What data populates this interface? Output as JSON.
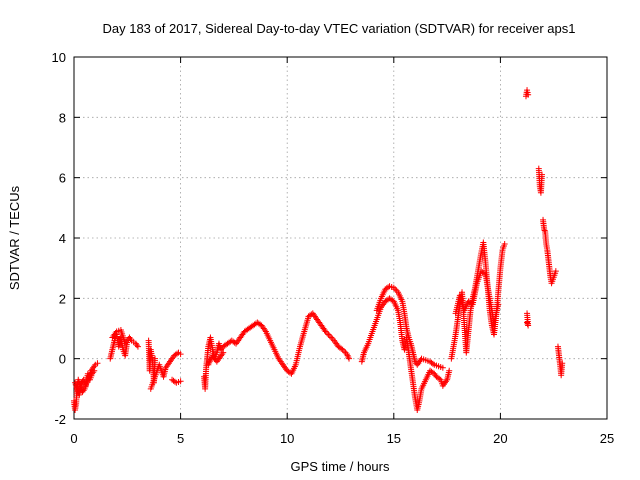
{
  "chart_data": {
    "type": "scatter",
    "title": "Day 183 of 2017, Sidereal Day-to-day VTEC variation (SDTVAR) for receiver aps1",
    "xlabel": "GPS time / hours",
    "ylabel": "SDTVAR / TECUs",
    "xlim": [
      0,
      25
    ],
    "ylim": [
      -2,
      10
    ],
    "xticks": [
      0,
      5,
      10,
      15,
      20,
      25
    ],
    "yticks": [
      -2,
      0,
      2,
      4,
      6,
      8,
      10
    ],
    "grid": true,
    "marker": "+",
    "color": "#ff0000",
    "series": [
      {
        "name": "SDTVAR",
        "segments": [
          [
            [
              0.0,
              -1.4
            ],
            [
              0.05,
              -1.7
            ],
            [
              0.1,
              -1.5
            ],
            [
              0.15,
              -0.9
            ],
            [
              0.2,
              -0.7
            ],
            [
              0.3,
              -0.9
            ],
            [
              0.4,
              -1.1
            ],
            [
              0.5,
              -1.0
            ],
            [
              0.6,
              -0.8
            ],
            [
              0.7,
              -0.6
            ],
            [
              0.8,
              -0.4
            ],
            [
              0.9,
              -0.3
            ],
            [
              1.0,
              -0.2
            ],
            [
              1.1,
              -0.15
            ]
          ],
          [
            [
              0.05,
              -0.8
            ],
            [
              0.15,
              -1.0
            ],
            [
              0.25,
              -1.2
            ],
            [
              0.35,
              -0.8
            ],
            [
              0.45,
              -0.7
            ],
            [
              0.55,
              -0.9
            ],
            [
              0.65,
              -0.5
            ],
            [
              0.75,
              -0.7
            ],
            [
              0.85,
              -0.5
            ],
            [
              0.95,
              -0.4
            ]
          ],
          [
            [
              1.7,
              0.0
            ],
            [
              1.8,
              0.3
            ],
            [
              1.9,
              0.6
            ],
            [
              2.0,
              0.8
            ],
            [
              2.1,
              0.4
            ],
            [
              2.2,
              0.7
            ],
            [
              2.3,
              0.3
            ],
            [
              2.4,
              0.1
            ],
            [
              2.5,
              0.6
            ],
            [
              2.6,
              0.7
            ],
            [
              2.7,
              0.6
            ],
            [
              2.8,
              0.55
            ],
            [
              2.9,
              0.5
            ],
            [
              3.0,
              0.4
            ]
          ],
          [
            [
              1.8,
              0.7
            ],
            [
              2.0,
              0.9
            ],
            [
              2.2,
              0.95
            ],
            [
              2.4,
              0.5
            ]
          ],
          [
            [
              3.5,
              0.6
            ],
            [
              3.55,
              -0.4
            ],
            [
              3.6,
              0.3
            ],
            [
              3.65,
              0.1
            ],
            [
              3.7,
              -0.2
            ],
            [
              3.75,
              -0.8
            ],
            [
              3.8,
              0.0
            ]
          ],
          [
            [
              3.6,
              -1.0
            ],
            [
              3.8,
              -0.6
            ],
            [
              4.0,
              -0.2
            ],
            [
              4.2,
              -0.6
            ],
            [
              4.3,
              -0.3
            ],
            [
              4.5,
              -0.1
            ],
            [
              4.7,
              0.1
            ],
            [
              4.9,
              0.2
            ],
            [
              5.0,
              0.15
            ]
          ],
          [
            [
              4.6,
              -0.7
            ],
            [
              4.8,
              -0.8
            ],
            [
              5.0,
              -0.75
            ]
          ],
          [
            [
              6.1,
              -0.6
            ],
            [
              6.15,
              -1.0
            ],
            [
              6.2,
              -0.3
            ],
            [
              6.3,
              0.4
            ],
            [
              6.4,
              0.7
            ],
            [
              6.5,
              0.3
            ],
            [
              6.6,
              0.0
            ],
            [
              6.7,
              0.2
            ],
            [
              6.8,
              0.5
            ],
            [
              6.9,
              0.3
            ],
            [
              7.0,
              0.4
            ],
            [
              7.2,
              0.5
            ],
            [
              7.4,
              0.6
            ],
            [
              7.6,
              0.5
            ],
            [
              7.8,
              0.7
            ],
            [
              8.0,
              0.9
            ],
            [
              8.2,
              1.0
            ],
            [
              8.4,
              1.1
            ],
            [
              8.6,
              1.2
            ],
            [
              8.8,
              1.1
            ],
            [
              9.0,
              0.9
            ],
            [
              9.2,
              0.6
            ],
            [
              9.4,
              0.3
            ],
            [
              9.6,
              0.0
            ],
            [
              9.8,
              -0.2
            ],
            [
              10.0,
              -0.4
            ],
            [
              10.2,
              -0.5
            ],
            [
              10.4,
              -0.2
            ],
            [
              10.6,
              0.4
            ],
            [
              10.8,
              0.9
            ],
            [
              11.0,
              1.4
            ],
            [
              11.2,
              1.5
            ],
            [
              11.4,
              1.3
            ],
            [
              11.6,
              1.1
            ],
            [
              11.8,
              0.9
            ],
            [
              12.0,
              0.75
            ],
            [
              12.2,
              0.6
            ],
            [
              12.4,
              0.4
            ],
            [
              12.6,
              0.3
            ],
            [
              12.8,
              0.15
            ],
            [
              12.9,
              0.0
            ]
          ],
          [
            [
              6.3,
              -0.2
            ],
            [
              6.5,
              0.1
            ],
            [
              6.7,
              -0.1
            ],
            [
              7.0,
              0.2
            ]
          ],
          [
            [
              13.5,
              -0.1
            ],
            [
              13.6,
              0.2
            ],
            [
              13.8,
              0.5
            ],
            [
              14.0,
              0.9
            ],
            [
              14.2,
              1.3
            ],
            [
              14.4,
              1.7
            ],
            [
              14.6,
              1.9
            ],
            [
              14.8,
              2.0
            ],
            [
              15.0,
              1.9
            ],
            [
              15.2,
              1.6
            ],
            [
              15.3,
              1.2
            ],
            [
              15.4,
              0.6
            ],
            [
              15.5,
              0.3
            ],
            [
              15.6,
              0.7
            ],
            [
              15.7,
              0.2
            ],
            [
              15.8,
              -0.3
            ],
            [
              15.9,
              -0.8
            ],
            [
              16.0,
              -1.3
            ],
            [
              16.1,
              -1.7
            ],
            [
              16.2,
              -1.4
            ],
            [
              16.3,
              -1.0
            ],
            [
              16.5,
              -0.7
            ],
            [
              16.7,
              -0.4
            ],
            [
              16.9,
              -0.5
            ],
            [
              17.0,
              -0.6
            ],
            [
              17.2,
              -0.7
            ],
            [
              17.3,
              -0.9
            ],
            [
              17.5,
              -0.7
            ],
            [
              17.6,
              -0.4
            ]
          ],
          [
            [
              14.2,
              1.6
            ],
            [
              14.4,
              2.0
            ],
            [
              14.6,
              2.3
            ],
            [
              14.8,
              2.4
            ],
            [
              15.0,
              2.35
            ],
            [
              15.2,
              2.2
            ],
            [
              15.4,
              1.9
            ],
            [
              15.5,
              1.5
            ],
            [
              15.6,
              1.0
            ],
            [
              15.7,
              0.7
            ],
            [
              15.8,
              0.5
            ],
            [
              15.9,
              0.2
            ],
            [
              16.0,
              -0.1
            ],
            [
              16.1,
              -0.2
            ],
            [
              16.3,
              0.0
            ],
            [
              16.5,
              -0.05
            ],
            [
              16.7,
              -0.1
            ],
            [
              16.9,
              -0.2
            ],
            [
              17.1,
              -0.25
            ],
            [
              17.3,
              -0.3
            ]
          ],
          [
            [
              17.7,
              0.0
            ],
            [
              17.8,
              0.4
            ],
            [
              17.9,
              0.8
            ],
            [
              18.0,
              1.3
            ],
            [
              18.1,
              1.8
            ],
            [
              18.2,
              2.2
            ],
            [
              18.3,
              1.2
            ],
            [
              18.4,
              0.2
            ],
            [
              18.5,
              0.9
            ],
            [
              18.6,
              1.6
            ],
            [
              18.7,
              2.0
            ],
            [
              18.8,
              2.3
            ],
            [
              18.9,
              2.7
            ],
            [
              19.0,
              3.1
            ],
            [
              19.1,
              3.5
            ],
            [
              19.2,
              3.85
            ],
            [
              19.3,
              3.2
            ],
            [
              19.4,
              2.4
            ],
            [
              19.5,
              1.6
            ],
            [
              19.6,
              1.1
            ],
            [
              19.7,
              0.8
            ],
            [
              19.8,
              1.4
            ],
            [
              19.9,
              2.2
            ],
            [
              20.0,
              3.0
            ],
            [
              20.1,
              3.6
            ],
            [
              20.2,
              3.8
            ]
          ],
          [
            [
              17.9,
              1.5
            ],
            [
              18.1,
              2.1
            ],
            [
              18.3,
              1.6
            ],
            [
              18.5,
              1.9
            ],
            [
              18.7,
              1.8
            ],
            [
              18.9,
              2.5
            ],
            [
              19.1,
              2.9
            ],
            [
              19.3,
              2.8
            ],
            [
              19.5,
              2.0
            ],
            [
              19.7,
              1.2
            ],
            [
              19.9,
              1.8
            ]
          ],
          [
            [
              21.2,
              8.7
            ],
            [
              21.25,
              8.9
            ],
            [
              21.3,
              8.75
            ]
          ],
          [
            [
              21.25,
              1.5
            ],
            [
              21.3,
              1.1
            ],
            [
              21.25,
              1.2
            ]
          ],
          [
            [
              21.8,
              6.3
            ],
            [
              21.85,
              5.7
            ],
            [
              21.9,
              5.5
            ],
            [
              21.95,
              6.1
            ]
          ],
          [
            [
              22.0,
              4.6
            ],
            [
              22.05,
              4.3
            ],
            [
              22.1,
              4.2
            ],
            [
              22.15,
              3.8
            ],
            [
              22.2,
              3.6
            ],
            [
              22.25,
              3.3
            ],
            [
              22.3,
              3.0
            ],
            [
              22.35,
              2.7
            ],
            [
              22.4,
              2.5
            ],
            [
              22.6,
              2.9
            ]
          ],
          [
            [
              22.7,
              0.4
            ],
            [
              22.75,
              0.1
            ],
            [
              22.8,
              -0.2
            ],
            [
              22.85,
              -0.55
            ],
            [
              22.9,
              -0.15
            ]
          ]
        ]
      }
    ]
  }
}
